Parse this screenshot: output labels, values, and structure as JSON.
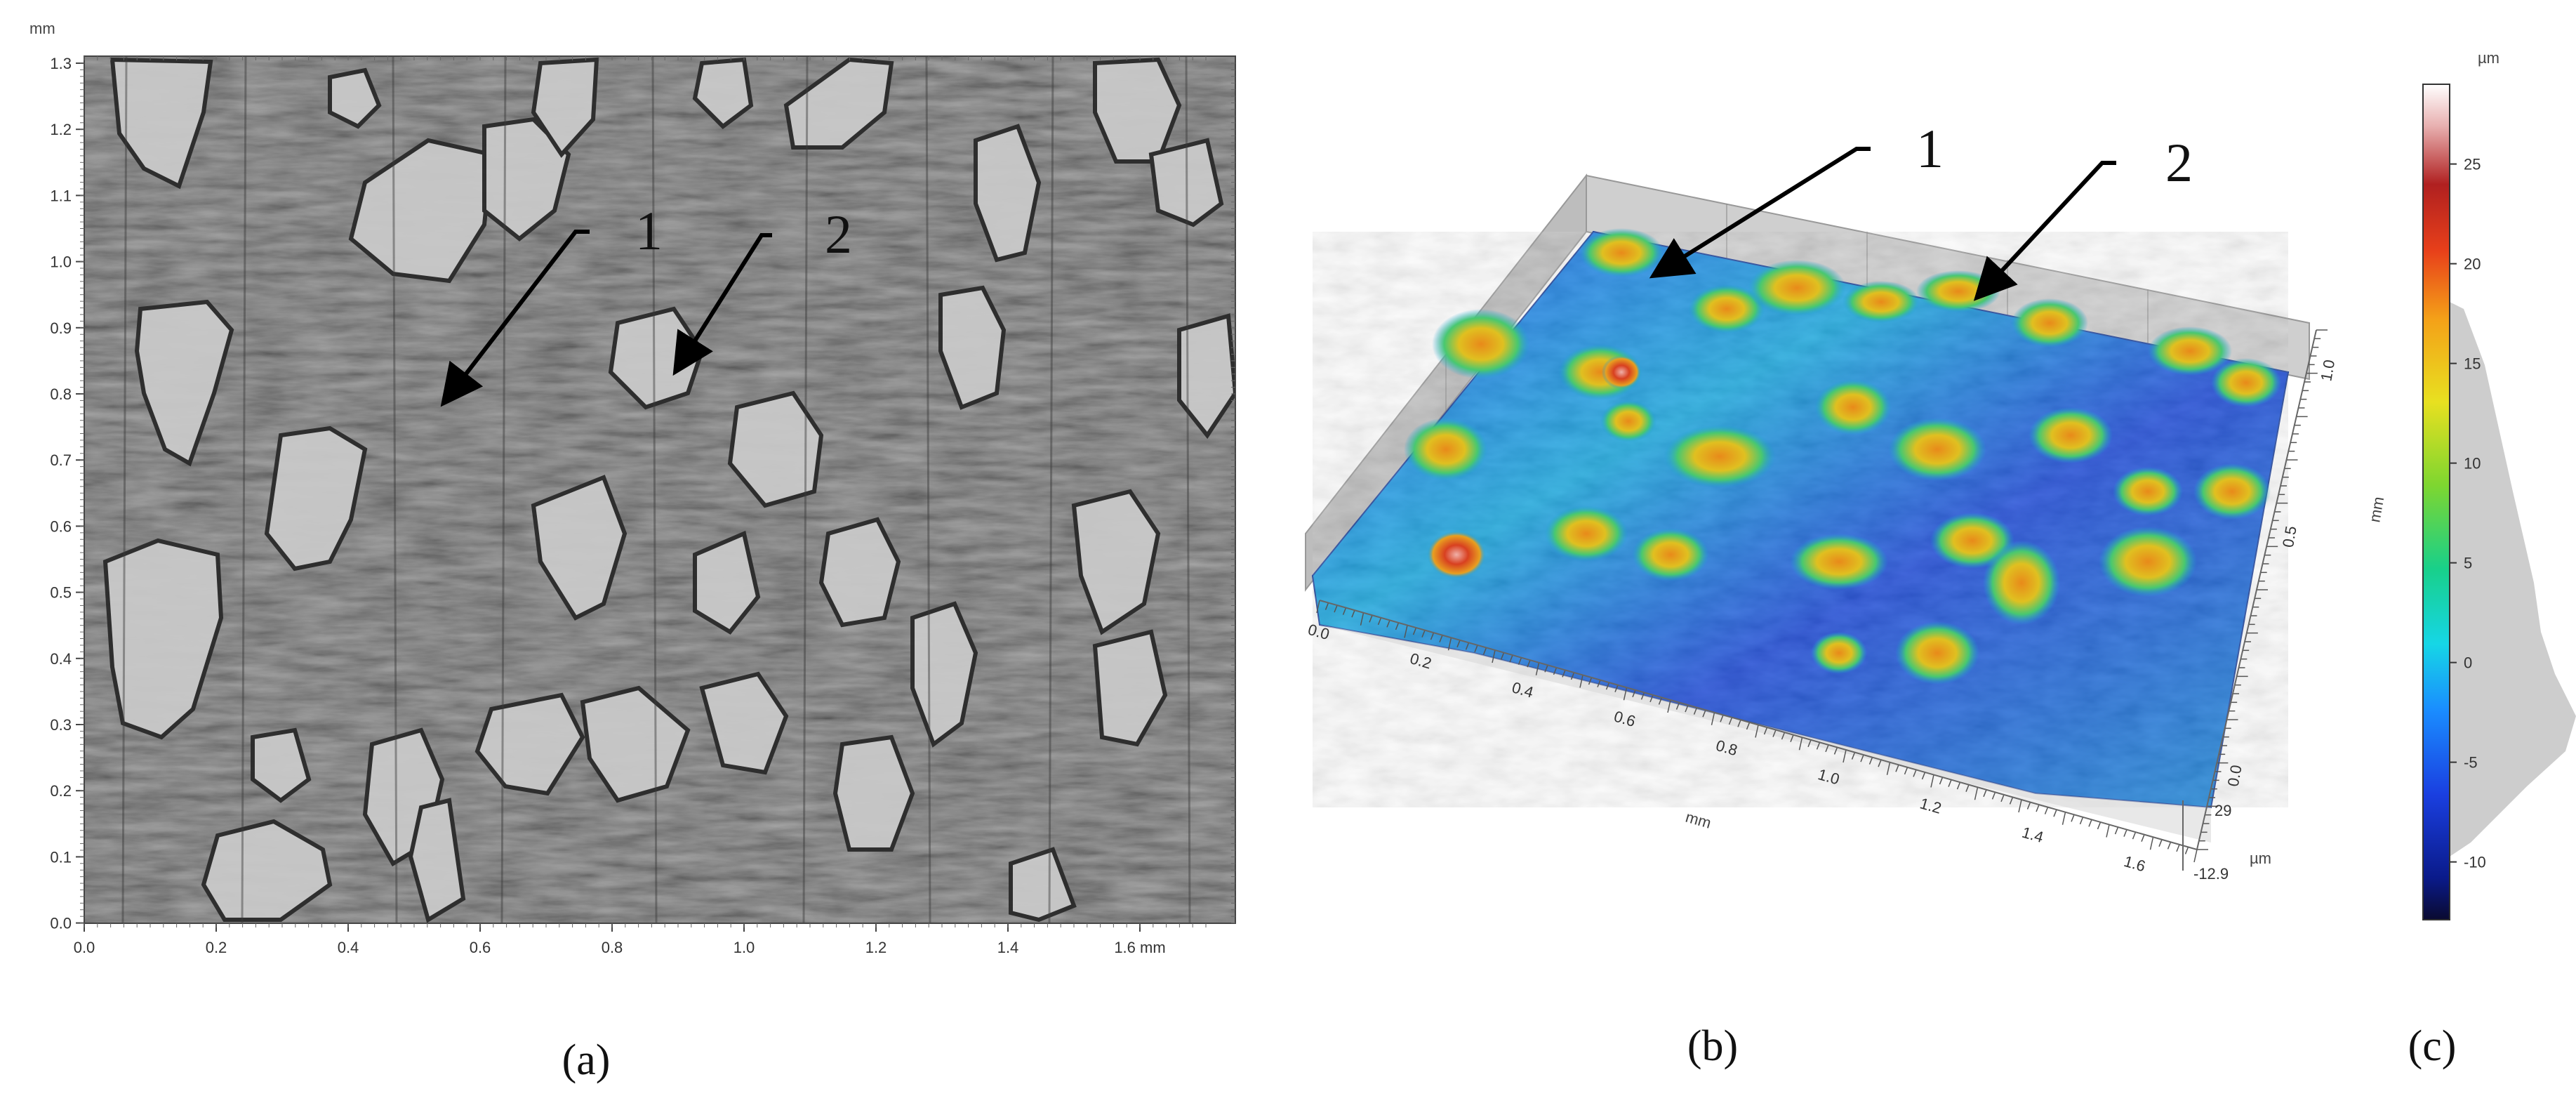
{
  "panel_a": {
    "caption": "(a)",
    "x_unit": "mm",
    "y_unit": "mm",
    "x_ticks": [
      "0.0",
      "0.2",
      "0.4",
      "0.6",
      "0.8",
      "1.0",
      "1.2",
      "1.4",
      "1.6 mm"
    ],
    "y_ticks": [
      "1.3",
      "1.2",
      "1.1",
      "1.0",
      "0.9",
      "0.8",
      "0.7",
      "0.6",
      "0.5",
      "0.4",
      "0.3",
      "0.2",
      "0.1",
      "0.0"
    ],
    "markers": [
      "1",
      "2"
    ]
  },
  "panel_b": {
    "caption": "(b)",
    "x_unit": "mm",
    "y_unit": "mm",
    "z_unit": "µm",
    "x_ticks": [
      "0.0",
      "0.2",
      "0.4",
      "0.6",
      "0.8",
      "1.0",
      "1.2",
      "1.4",
      "1.6"
    ],
    "y_ticks": [
      "0.0",
      "0.5",
      "1.0"
    ],
    "z_ticks": [
      "29",
      "-12.9"
    ],
    "markers": [
      "1",
      "2"
    ]
  },
  "panel_c": {
    "caption": "(c)",
    "unit": "µm",
    "ticks": [
      "25",
      "20",
      "15",
      "10",
      "5",
      "0",
      "-5",
      "-10"
    ],
    "range": [
      -12.9,
      29
    ],
    "colors": [
      "#0a0a30",
      "#0a1a8a",
      "#1a3fe0",
      "#1a8cff",
      "#16d6e6",
      "#18d08a",
      "#7ed630",
      "#e8e020",
      "#f4a018",
      "#e8401a",
      "#b02020",
      "#e8b0b0",
      "#ffffff"
    ]
  }
}
